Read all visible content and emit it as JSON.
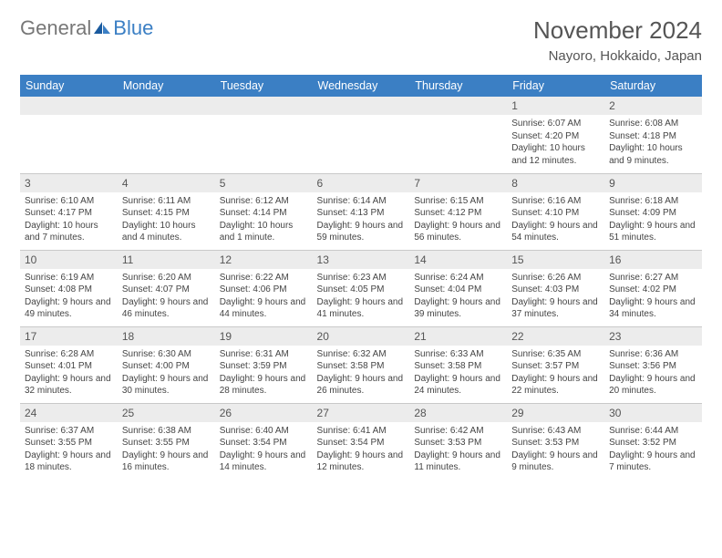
{
  "brand": {
    "word1": "General",
    "word2": "Blue",
    "logo_dark": "#1a5a9e",
    "logo_light": "#3b7fc4"
  },
  "title": "November 2024",
  "location": "Nayoro, Hokkaido, Japan",
  "header_bg": "#3b7fc4",
  "day_bg": "#ececec",
  "border": "#c9c9c9",
  "days": [
    "Sunday",
    "Monday",
    "Tuesday",
    "Wednesday",
    "Thursday",
    "Friday",
    "Saturday"
  ],
  "weeks": [
    [
      {
        "n": "",
        "lines": []
      },
      {
        "n": "",
        "lines": []
      },
      {
        "n": "",
        "lines": []
      },
      {
        "n": "",
        "lines": []
      },
      {
        "n": "",
        "lines": []
      },
      {
        "n": "1",
        "lines": [
          "Sunrise: 6:07 AM",
          "Sunset: 4:20 PM",
          "Daylight: 10 hours and 12 minutes."
        ]
      },
      {
        "n": "2",
        "lines": [
          "Sunrise: 6:08 AM",
          "Sunset: 4:18 PM",
          "Daylight: 10 hours and 9 minutes."
        ]
      }
    ],
    [
      {
        "n": "3",
        "lines": [
          "Sunrise: 6:10 AM",
          "Sunset: 4:17 PM",
          "Daylight: 10 hours and 7 minutes."
        ]
      },
      {
        "n": "4",
        "lines": [
          "Sunrise: 6:11 AM",
          "Sunset: 4:15 PM",
          "Daylight: 10 hours and 4 minutes."
        ]
      },
      {
        "n": "5",
        "lines": [
          "Sunrise: 6:12 AM",
          "Sunset: 4:14 PM",
          "Daylight: 10 hours and 1 minute."
        ]
      },
      {
        "n": "6",
        "lines": [
          "Sunrise: 6:14 AM",
          "Sunset: 4:13 PM",
          "Daylight: 9 hours and 59 minutes."
        ]
      },
      {
        "n": "7",
        "lines": [
          "Sunrise: 6:15 AM",
          "Sunset: 4:12 PM",
          "Daylight: 9 hours and 56 minutes."
        ]
      },
      {
        "n": "8",
        "lines": [
          "Sunrise: 6:16 AM",
          "Sunset: 4:10 PM",
          "Daylight: 9 hours and 54 minutes."
        ]
      },
      {
        "n": "9",
        "lines": [
          "Sunrise: 6:18 AM",
          "Sunset: 4:09 PM",
          "Daylight: 9 hours and 51 minutes."
        ]
      }
    ],
    [
      {
        "n": "10",
        "lines": [
          "Sunrise: 6:19 AM",
          "Sunset: 4:08 PM",
          "Daylight: 9 hours and 49 minutes."
        ]
      },
      {
        "n": "11",
        "lines": [
          "Sunrise: 6:20 AM",
          "Sunset: 4:07 PM",
          "Daylight: 9 hours and 46 minutes."
        ]
      },
      {
        "n": "12",
        "lines": [
          "Sunrise: 6:22 AM",
          "Sunset: 4:06 PM",
          "Daylight: 9 hours and 44 minutes."
        ]
      },
      {
        "n": "13",
        "lines": [
          "Sunrise: 6:23 AM",
          "Sunset: 4:05 PM",
          "Daylight: 9 hours and 41 minutes."
        ]
      },
      {
        "n": "14",
        "lines": [
          "Sunrise: 6:24 AM",
          "Sunset: 4:04 PM",
          "Daylight: 9 hours and 39 minutes."
        ]
      },
      {
        "n": "15",
        "lines": [
          "Sunrise: 6:26 AM",
          "Sunset: 4:03 PM",
          "Daylight: 9 hours and 37 minutes."
        ]
      },
      {
        "n": "16",
        "lines": [
          "Sunrise: 6:27 AM",
          "Sunset: 4:02 PM",
          "Daylight: 9 hours and 34 minutes."
        ]
      }
    ],
    [
      {
        "n": "17",
        "lines": [
          "Sunrise: 6:28 AM",
          "Sunset: 4:01 PM",
          "Daylight: 9 hours and 32 minutes."
        ]
      },
      {
        "n": "18",
        "lines": [
          "Sunrise: 6:30 AM",
          "Sunset: 4:00 PM",
          "Daylight: 9 hours and 30 minutes."
        ]
      },
      {
        "n": "19",
        "lines": [
          "Sunrise: 6:31 AM",
          "Sunset: 3:59 PM",
          "Daylight: 9 hours and 28 minutes."
        ]
      },
      {
        "n": "20",
        "lines": [
          "Sunrise: 6:32 AM",
          "Sunset: 3:58 PM",
          "Daylight: 9 hours and 26 minutes."
        ]
      },
      {
        "n": "21",
        "lines": [
          "Sunrise: 6:33 AM",
          "Sunset: 3:58 PM",
          "Daylight: 9 hours and 24 minutes."
        ]
      },
      {
        "n": "22",
        "lines": [
          "Sunrise: 6:35 AM",
          "Sunset: 3:57 PM",
          "Daylight: 9 hours and 22 minutes."
        ]
      },
      {
        "n": "23",
        "lines": [
          "Sunrise: 6:36 AM",
          "Sunset: 3:56 PM",
          "Daylight: 9 hours and 20 minutes."
        ]
      }
    ],
    [
      {
        "n": "24",
        "lines": [
          "Sunrise: 6:37 AM",
          "Sunset: 3:55 PM",
          "Daylight: 9 hours and 18 minutes."
        ]
      },
      {
        "n": "25",
        "lines": [
          "Sunrise: 6:38 AM",
          "Sunset: 3:55 PM",
          "Daylight: 9 hours and 16 minutes."
        ]
      },
      {
        "n": "26",
        "lines": [
          "Sunrise: 6:40 AM",
          "Sunset: 3:54 PM",
          "Daylight: 9 hours and 14 minutes."
        ]
      },
      {
        "n": "27",
        "lines": [
          "Sunrise: 6:41 AM",
          "Sunset: 3:54 PM",
          "Daylight: 9 hours and 12 minutes."
        ]
      },
      {
        "n": "28",
        "lines": [
          "Sunrise: 6:42 AM",
          "Sunset: 3:53 PM",
          "Daylight: 9 hours and 11 minutes."
        ]
      },
      {
        "n": "29",
        "lines": [
          "Sunrise: 6:43 AM",
          "Sunset: 3:53 PM",
          "Daylight: 9 hours and 9 minutes."
        ]
      },
      {
        "n": "30",
        "lines": [
          "Sunrise: 6:44 AM",
          "Sunset: 3:52 PM",
          "Daylight: 9 hours and 7 minutes."
        ]
      }
    ]
  ]
}
